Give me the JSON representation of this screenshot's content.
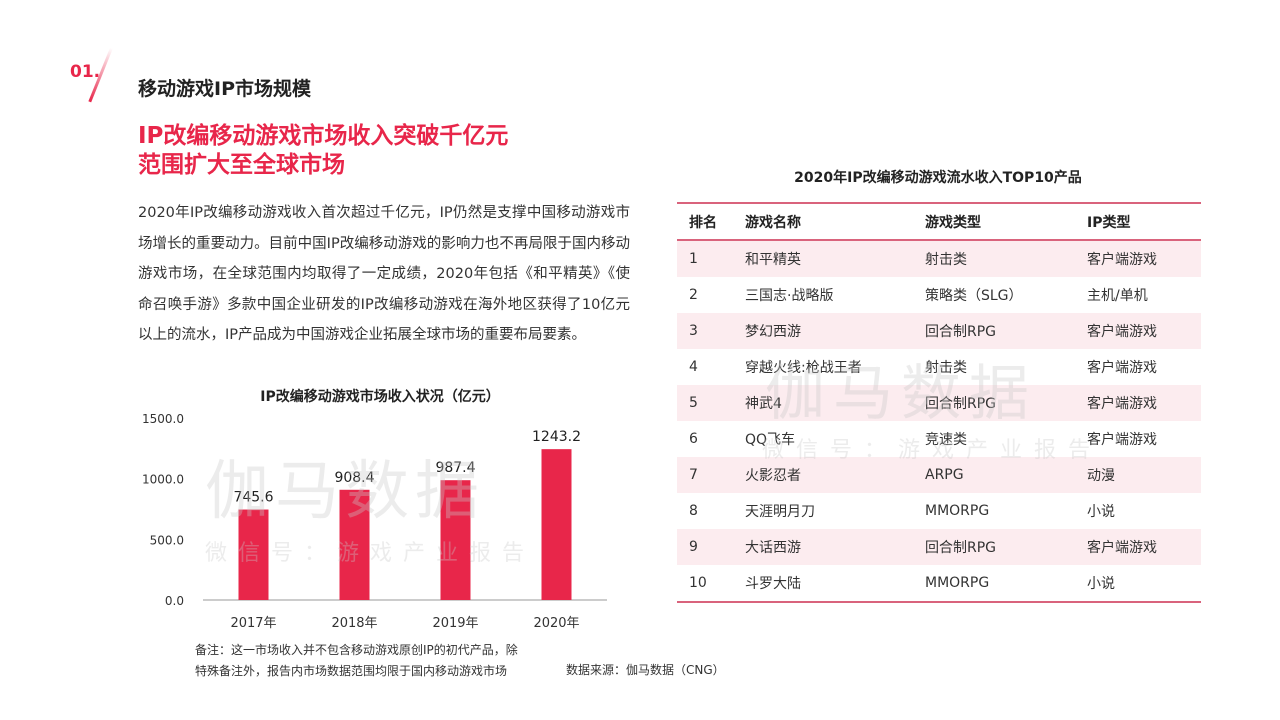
{
  "header": {
    "number": "01.",
    "section": "移动游戏IP市场规模",
    "headline": [
      "IP改编移动游戏市场收入突破千亿元",
      "范围扩大至全球市场"
    ]
  },
  "paragraph": "2020年IP改编移动游戏收入首次超过千亿元，IP仍然是支撑中国移动游戏市场增长的重要动力。目前中国IP改编移动游戏的影响力也不再局限于国内移动游戏市场，在全球范围内均取得了一定成绩，2020年包括《和平精英》《使命召唤手游》多款中国企业研发的IP改编移动游戏在海外地区获得了10亿元以上的流水，IP产品成为中国游戏企业拓展全球市场的重要布局要素。",
  "chart_data": {
    "type": "bar",
    "title": "IP改编移动游戏市场收入状况（亿元）",
    "categories": [
      "2017年",
      "2018年",
      "2019年",
      "2020年"
    ],
    "values": [
      745.6,
      908.4,
      987.4,
      1243.2
    ],
    "labels": [
      "745.6",
      "908.4",
      "987.4",
      "1243.2"
    ],
    "yticks": [
      "0.0",
      "500.0",
      "1000.0",
      "1500.0"
    ],
    "ylim": [
      0,
      1500
    ],
    "color": "#e8264a"
  },
  "watermark": {
    "big": "伽马数据",
    "small": "微信号：游戏产业报告"
  },
  "notes": [
    "备注：这一市场收入并不包含移动游戏原创IP的初代产品，除",
    "特殊备注外，报告内市场数据范围均限于国内移动游戏市场"
  ],
  "source": "数据来源：伽马数据（CNG）",
  "table": {
    "title": "2020年IP改编移动游戏流水收入TOP10产品",
    "headers": [
      "排名",
      "游戏名称",
      "游戏类型",
      "IP类型"
    ],
    "rows": [
      [
        "1",
        "和平精英",
        "射击类",
        "客户端游戏"
      ],
      [
        "2",
        "三国志·战略版",
        "策略类（SLG）",
        "主机/单机"
      ],
      [
        "3",
        "梦幻西游",
        "回合制RPG",
        "客户端游戏"
      ],
      [
        "4",
        "穿越火线:枪战王者",
        "射击类",
        "客户端游戏"
      ],
      [
        "5",
        "神武4",
        "回合制RPG",
        "客户端游戏"
      ],
      [
        "6",
        "QQ飞车",
        "竞速类",
        "客户端游戏"
      ],
      [
        "7",
        "火影忍者",
        "ARPG",
        "动漫"
      ],
      [
        "8",
        "天涯明月刀",
        "MMORPG",
        "小说"
      ],
      [
        "9",
        "大话西游",
        "回合制RPG",
        "客户端游戏"
      ],
      [
        "10",
        "斗罗大陆",
        "MMORPG",
        "小说"
      ]
    ]
  }
}
